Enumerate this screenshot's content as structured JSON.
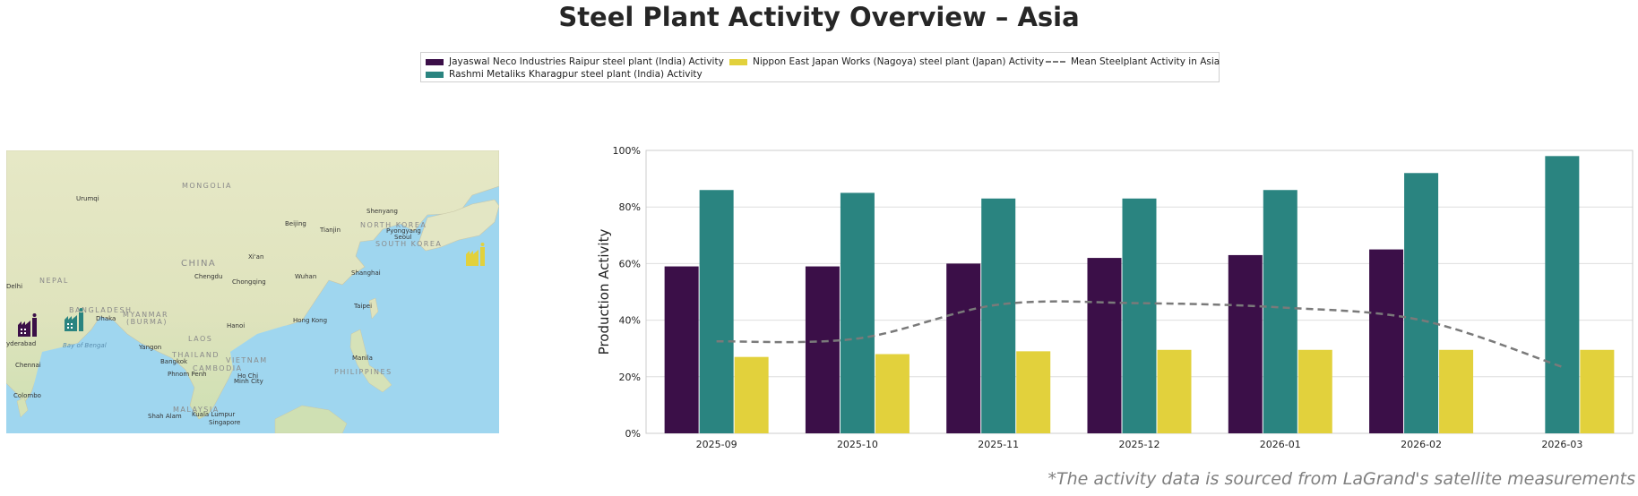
{
  "title": "Steel Plant Activity Overview – Asia",
  "legend": {
    "jayaswal": "Jayaswal Neco Industries Raipur steel plant (India) Activity",
    "rashmi": "Rashmi Metaliks Kharagpur steel plant (India) Activity",
    "nippon": "Nippon East Japan Works (Nagoya) steel plant (Japan) Activity",
    "mean": "Mean Steelplant Activity in Asia"
  },
  "colors": {
    "jayaswal": "#3b0f48",
    "rashmi": "#2a8480",
    "nippon": "#e2d13c",
    "mean": "#7a7a7a"
  },
  "map": {
    "labels": {
      "urumqi": "Urumqi",
      "mongolia": "MONGOLIA",
      "shenyang": "Shenyang",
      "beijing": "Beijing",
      "tianjin": "Tianjin",
      "north_korea": "NORTH KOREA",
      "pyongyang": "Pyongyang",
      "seoul": "Seoul",
      "south_korea": "SOUTH KOREA",
      "china": "CHINA",
      "xian": "Xi'an",
      "chengdu": "Chengdu",
      "chongqing": "Chongqing",
      "wuhan": "Wuhan",
      "shanghai": "Shanghai",
      "delhi": "Delhi",
      "nepal": "NEPAL",
      "bangladesh": "BANGLADESH",
      "dhaka": "Dhaka",
      "myanmar": "MYANMAR",
      "burma": "(BURMA)",
      "taipei": "Taipei",
      "hong_kong": "Hong Kong",
      "hanoi": "Hanoi",
      "hyderabad": "yderabad",
      "bay_of_bengal": "Bay of Bengal",
      "yangon": "Yangon",
      "laos": "LAOS",
      "thailand": "THAILAND",
      "bangkok": "Bangkok",
      "vietnam": "VIETNAM",
      "manila": "Manila",
      "chennai": "Chennai",
      "phnom_penh": "Phnom Penh",
      "cambodia": "CAMBODIA",
      "ho_chi_minh": "Ho Chi",
      "ho_chi_minh2": "Minh City",
      "philippines": "PHILIPPINES",
      "colombo": "Colombo",
      "malaysia": "MALAYSIA",
      "kuala_lumpur": "Kuala Lumpur",
      "shah_alam": "Shah Alam",
      "singapore": "Singapore"
    }
  },
  "chart_data": {
    "type": "bar",
    "categories": [
      "2025-09",
      "2025-10",
      "2025-11",
      "2025-12",
      "2026-01",
      "2026-02",
      "2026-03"
    ],
    "series": [
      {
        "name": "Jayaswal Neco Industries Raipur steel plant (India) Activity",
        "values": [
          59,
          59,
          60,
          62,
          63,
          65,
          null
        ]
      },
      {
        "name": "Rashmi Metaliks Kharagpur steel plant (India) Activity",
        "values": [
          86,
          85,
          83,
          83,
          86,
          92,
          98
        ]
      },
      {
        "name": "Nippon East Japan Works (Nagoya) steel plant (Japan) Activity",
        "values": [
          27,
          28,
          29,
          29.5,
          29.5,
          29.5,
          29.5
        ]
      }
    ],
    "line": {
      "name": "Mean Steelplant Activity in Asia",
      "values": [
        32.5,
        33.5,
        45.5,
        46,
        44.5,
        40,
        23.5
      ]
    },
    "ylabel": "Production Activity",
    "ylim": [
      0,
      100
    ],
    "yticks": [
      "0%",
      "20%",
      "40%",
      "60%",
      "80%",
      "100%"
    ],
    "grid": true,
    "legend_position": "top-center"
  },
  "footnote": "*The activity data is sourced from LaGrand's satellite measurements"
}
